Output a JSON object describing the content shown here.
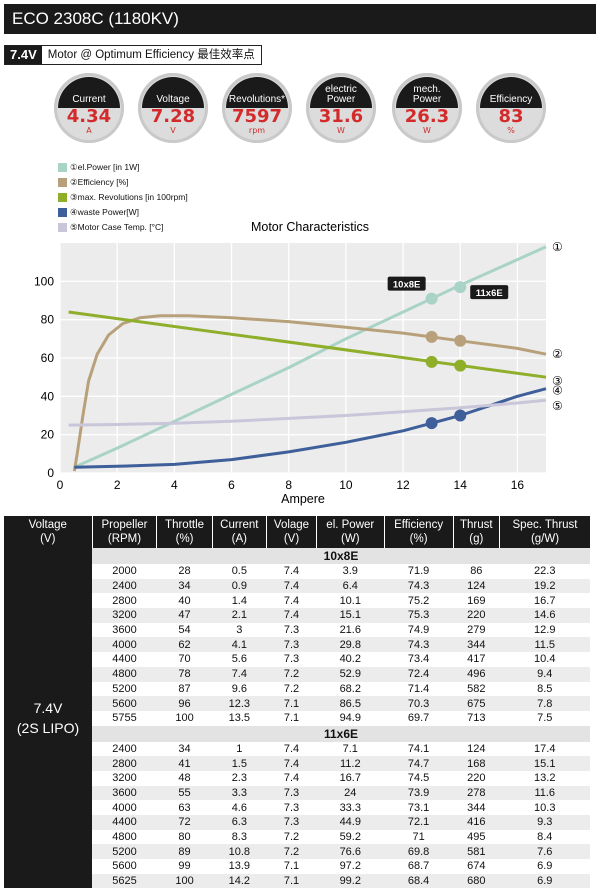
{
  "title": "ECO 2308C (1180KV)",
  "header": {
    "voltage": "7.4V",
    "label": "Motor @ Optimum Efficiency  最佳效率点"
  },
  "gauges": [
    {
      "label": "Current",
      "value": "4.34",
      "unit": "A"
    },
    {
      "label": "Voltage",
      "value": "7.28",
      "unit": "V"
    },
    {
      "label": "Revolutions*",
      "value": "7597",
      "unit": "rpm"
    },
    {
      "label": "electric\nPower",
      "value": "31.6",
      "unit": "W"
    },
    {
      "label": "mech.\nPower",
      "value": "26.3",
      "unit": "W"
    },
    {
      "label": "Efficiency",
      "value": "83",
      "unit": "%"
    }
  ],
  "chart_data": {
    "type": "line",
    "title": "Motor Characteristics",
    "xlabel": "Ampere",
    "ylabel": "",
    "xlim": [
      0,
      17
    ],
    "ylim": [
      0,
      120
    ],
    "x_ticks": [
      0,
      2,
      4,
      6,
      8,
      10,
      12,
      14,
      16
    ],
    "y_ticks": [
      0,
      20,
      40,
      60,
      80,
      100
    ],
    "grid": true,
    "legend_position": "top-left",
    "series": [
      {
        "name": "①el.Power [in 1W]",
        "end_label": "①",
        "color": "#a9d3c7",
        "points": [
          [
            0.5,
            3
          ],
          [
            2,
            13
          ],
          [
            4,
            27
          ],
          [
            6,
            41
          ],
          [
            8,
            55
          ],
          [
            10,
            70
          ],
          [
            12,
            84
          ],
          [
            14,
            98
          ],
          [
            17,
            118
          ]
        ],
        "markers": [
          [
            13,
            91
          ],
          [
            14,
            97
          ]
        ]
      },
      {
        "name": "②Efficiency [%]",
        "end_label": "②",
        "color": "#b8a17a",
        "points": [
          [
            0.5,
            1
          ],
          [
            0.6,
            10
          ],
          [
            0.8,
            30
          ],
          [
            1.0,
            48
          ],
          [
            1.3,
            62
          ],
          [
            1.7,
            72
          ],
          [
            2.2,
            78
          ],
          [
            2.8,
            81
          ],
          [
            3.5,
            82
          ],
          [
            4.5,
            82
          ],
          [
            6,
            81
          ],
          [
            8,
            79
          ],
          [
            10,
            76
          ],
          [
            12,
            73
          ],
          [
            14,
            69
          ],
          [
            16,
            65
          ],
          [
            17,
            62
          ]
        ],
        "markers": [
          [
            13,
            71
          ],
          [
            14,
            69
          ]
        ]
      },
      {
        "name": "③max. Revolutions [in 100rpm]",
        "end_label": "③",
        "color": "#8fae2a",
        "points": [
          [
            0.3,
            84
          ],
          [
            17,
            50
          ]
        ],
        "markers": [
          [
            13,
            58
          ],
          [
            14,
            56
          ]
        ]
      },
      {
        "name": "④waste Power[W]",
        "end_label": "④",
        "color": "#3f5f9a",
        "points": [
          [
            0.5,
            3
          ],
          [
            2,
            3.5
          ],
          [
            4,
            4.5
          ],
          [
            6,
            7
          ],
          [
            8,
            11
          ],
          [
            10,
            16
          ],
          [
            12,
            22
          ],
          [
            13,
            26
          ],
          [
            14,
            30
          ],
          [
            15,
            35
          ],
          [
            16,
            40
          ],
          [
            17,
            44
          ]
        ],
        "markers": [
          [
            13,
            26
          ],
          [
            14,
            30
          ]
        ]
      },
      {
        "name": "⑤Motor Case Temp. [°C]",
        "end_label": "⑤",
        "color": "#c9c6da",
        "points": [
          [
            0.3,
            25
          ],
          [
            2,
            25.3
          ],
          [
            4,
            26
          ],
          [
            6,
            27
          ],
          [
            8,
            28.5
          ],
          [
            10,
            30
          ],
          [
            12,
            32
          ],
          [
            14,
            34
          ],
          [
            16,
            36.5
          ],
          [
            17,
            38
          ]
        ],
        "markers": []
      }
    ],
    "callouts": [
      {
        "text": "10x8E",
        "x": 13,
        "y": 91,
        "side": "left"
      },
      {
        "text": "11x6E",
        "x": 14,
        "y": 97,
        "side": "right"
      }
    ]
  },
  "table": {
    "headers": [
      "Voltage\n(V)",
      "Propeller\n(RPM)",
      "Throttle\n(%)",
      "Current\n(A)",
      "Volage\n(V)",
      "el. Power\n(W)",
      "Efficiency\n(%)",
      "Thrust\n(g)",
      "Spec. Thrust\n(g/W)"
    ],
    "voltage_label": "7.4V\n(2S LIPO)",
    "sections": [
      {
        "name": "10x8E",
        "rows": [
          [
            "2000",
            "28",
            "0.5",
            "7.4",
            "3.9",
            "71.9",
            "86",
            "22.3"
          ],
          [
            "2400",
            "34",
            "0.9",
            "7.4",
            "6.4",
            "74.3",
            "124",
            "19.2"
          ],
          [
            "2800",
            "40",
            "1.4",
            "7.4",
            "10.1",
            "75.2",
            "169",
            "16.7"
          ],
          [
            "3200",
            "47",
            "2.1",
            "7.4",
            "15.1",
            "75.3",
            "220",
            "14.6"
          ],
          [
            "3600",
            "54",
            "3",
            "7.3",
            "21.6",
            "74.9",
            "279",
            "12.9"
          ],
          [
            "4000",
            "62",
            "4.1",
            "7.3",
            "29.8",
            "74.3",
            "344",
            "11.5"
          ],
          [
            "4400",
            "70",
            "5.6",
            "7.3",
            "40.2",
            "73.4",
            "417",
            "10.4"
          ],
          [
            "4800",
            "78",
            "7.4",
            "7.2",
            "52.9",
            "72.4",
            "496",
            "9.4"
          ],
          [
            "5200",
            "87",
            "9.6",
            "7.2",
            "68.2",
            "71.4",
            "582",
            "8.5"
          ],
          [
            "5600",
            "96",
            "12.3",
            "7.1",
            "86.5",
            "70.3",
            "675",
            "7.8"
          ],
          [
            "5755",
            "100",
            "13.5",
            "7.1",
            "94.9",
            "69.7",
            "713",
            "7.5"
          ]
        ]
      },
      {
        "name": "11x6E",
        "rows": [
          [
            "2400",
            "34",
            "1",
            "7.4",
            "7.1",
            "74.1",
            "124",
            "17.4"
          ],
          [
            "2800",
            "41",
            "1.5",
            "7.4",
            "11.2",
            "74.7",
            "168",
            "15.1"
          ],
          [
            "3200",
            "48",
            "2.3",
            "7.4",
            "16.7",
            "74.5",
            "220",
            "13.2"
          ],
          [
            "3600",
            "55",
            "3.3",
            "7.3",
            "24",
            "73.9",
            "278",
            "11.6"
          ],
          [
            "4000",
            "63",
            "4.6",
            "7.3",
            "33.3",
            "73.1",
            "344",
            "10.3"
          ],
          [
            "4400",
            "72",
            "6.3",
            "7.3",
            "44.9",
            "72.1",
            "416",
            "9.3"
          ],
          [
            "4800",
            "80",
            "8.3",
            "7.2",
            "59.2",
            "71",
            "495",
            "8.4"
          ],
          [
            "5200",
            "89",
            "10.8",
            "7.2",
            "76.6",
            "69.8",
            "581",
            "7.6"
          ],
          [
            "5600",
            "99",
            "13.9",
            "7.1",
            "97.2",
            "68.7",
            "674",
            "6.9"
          ],
          [
            "5625",
            "100",
            "14.2",
            "7.1",
            "99.2",
            "68.4",
            "680",
            "6.9"
          ]
        ]
      }
    ]
  }
}
